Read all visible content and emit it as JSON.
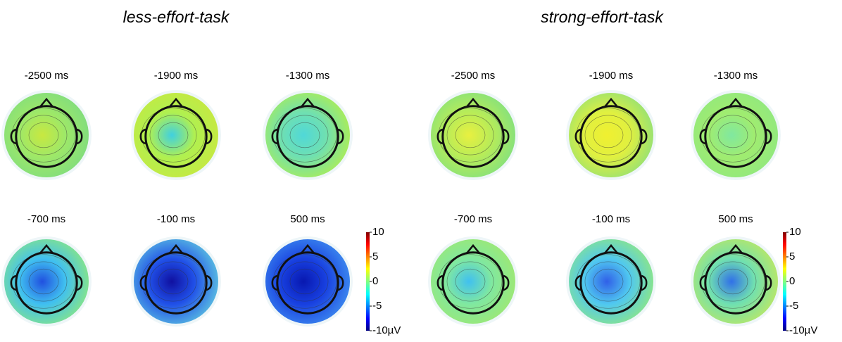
{
  "panels": [
    {
      "title": "less-effort-task",
      "maps": [
        {
          "label": "-2500 ms"
        },
        {
          "label": "-1900 ms"
        },
        {
          "label": "-1300 ms"
        },
        {
          "label": "-700 ms"
        },
        {
          "label": "-100 ms"
        },
        {
          "label": "500 ms"
        }
      ],
      "colorbar": {
        "lim": [
          -10,
          10
        ],
        "ticks": [
          10,
          5,
          0,
          -5,
          {
            "value": -10,
            "label": "-10µV"
          }
        ]
      }
    },
    {
      "title": "strong-effort-task",
      "maps": [
        {
          "label": "-2500 ms"
        },
        {
          "label": "-1900 ms"
        },
        {
          "label": "-1300 ms"
        },
        {
          "label": "-700 ms"
        },
        {
          "label": "-100 ms"
        },
        {
          "label": "500 ms"
        }
      ],
      "colorbar": {
        "lim": [
          -10,
          10
        ],
        "ticks": [
          10,
          5,
          0,
          -5,
          {
            "value": -10,
            "label": "-10µV"
          }
        ]
      }
    }
  ]
}
